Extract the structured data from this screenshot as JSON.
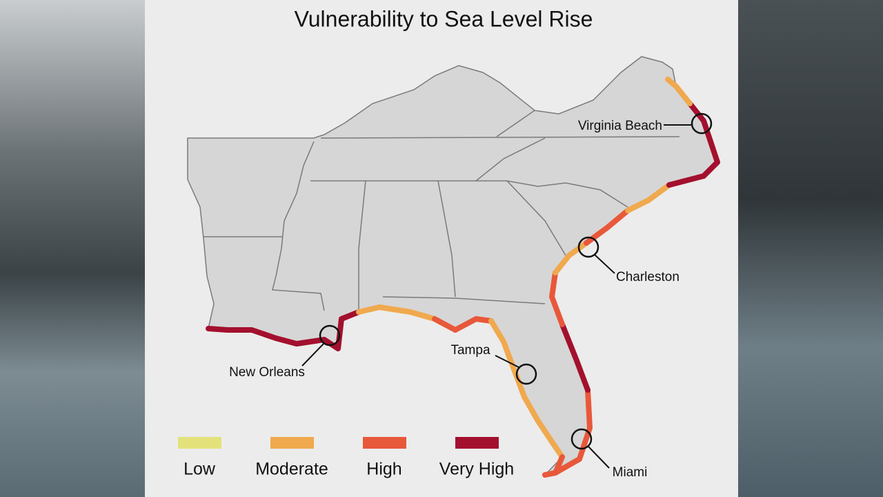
{
  "title": "Vulnerability to Sea Level Rise",
  "cities": [
    {
      "label": "Virginia Beach"
    },
    {
      "label": "Charleston"
    },
    {
      "label": "New Orleans"
    },
    {
      "label": "Tampa"
    },
    {
      "label": "Miami"
    }
  ],
  "legend": [
    {
      "label": "Low",
      "color": "#e3e27a"
    },
    {
      "label": "Moderate",
      "color": "#f0a94e"
    },
    {
      "label": "High",
      "color": "#e8583a"
    },
    {
      "label": "Very High",
      "color": "#a3102e"
    }
  ]
}
